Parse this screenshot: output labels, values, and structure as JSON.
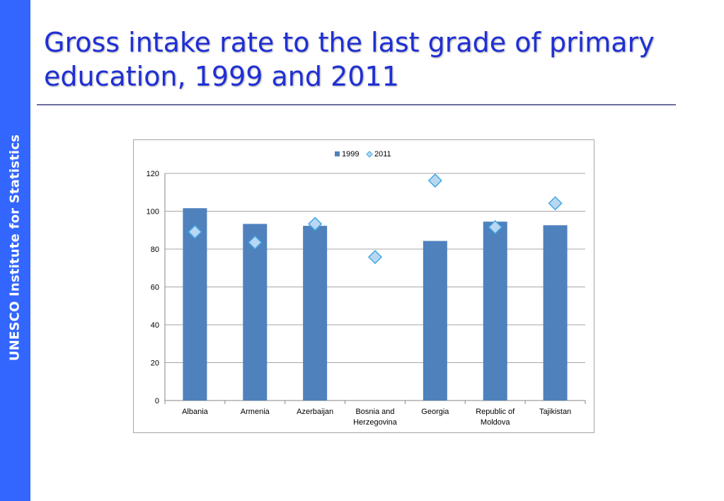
{
  "sidebar": {
    "label": "UNESCO Institute for Statistics"
  },
  "title": "Gross intake rate to the last grade of primary education, 1999 and 2011",
  "colors": {
    "sidebar": "#3366ff",
    "title": "#1f2fd6",
    "bar_1999": "#4f81bd",
    "marker_2011": "#b9d7f2",
    "marker_edge": "#41a7e6"
  },
  "chart_data": {
    "type": "bar",
    "categories": [
      "Albania",
      "Armenia",
      "Azerbaijan",
      "Bosnia and Herzegovina",
      "Georgia",
      "Republic of Moldova",
      "Tajikistan"
    ],
    "category_lines": [
      [
        "Albania"
      ],
      [
        "Armenia"
      ],
      [
        "Azerbaijan"
      ],
      [
        "Bosnia and",
        "Herzegovina"
      ],
      [
        "Georgia"
      ],
      [
        "Republic of",
        "Moldova"
      ],
      [
        "Tajikistan"
      ]
    ],
    "series": [
      {
        "name": "1999",
        "mark": "bar",
        "values": [
          101.6,
          93.3,
          92.3,
          null,
          84.3,
          94.5,
          92.6
        ]
      },
      {
        "name": "2011",
        "mark": "diamond",
        "values": [
          89.1,
          83.5,
          93.3,
          75.8,
          116.2,
          91.6,
          104.2
        ]
      }
    ],
    "yticks": [
      0,
      20,
      40,
      60,
      80,
      100,
      120
    ],
    "ylim": [
      0,
      120
    ],
    "grid": true,
    "legend": "top-center"
  }
}
